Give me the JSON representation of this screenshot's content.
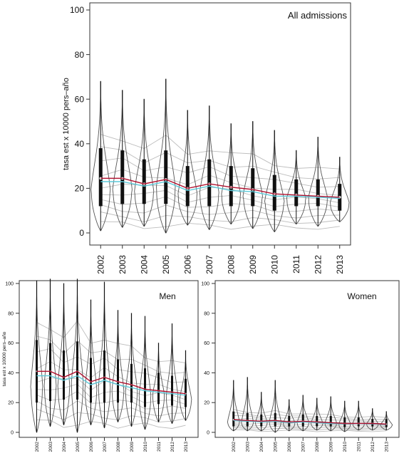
{
  "chart_data": [
    {
      "type": "violin",
      "title": "All admissions",
      "ylabel": "tasa est x 10000 pers–año",
      "ylim": [
        0,
        100
      ],
      "yticks": [
        0,
        20,
        40,
        60,
        80,
        100
      ],
      "categories": [
        "2002",
        "2003",
        "2004",
        "2005",
        "2006",
        "2007",
        "2008",
        "2009",
        "2010",
        "2011",
        "2012",
        "2013"
      ],
      "max": [
        68,
        64,
        60,
        69,
        55,
        57,
        49,
        50,
        46,
        37,
        43,
        34
      ],
      "min": [
        1,
        2.5,
        3,
        0,
        3.5,
        1.5,
        4,
        2,
        0.5,
        4,
        3,
        5
      ],
      "q1": [
        12,
        13,
        13,
        13,
        12,
        12,
        12,
        12,
        10,
        12,
        12,
        10
      ],
      "q3": [
        38,
        37,
        33,
        37,
        30,
        33,
        30,
        29,
        26,
        24,
        24,
        22
      ],
      "median_red": [
        24.5,
        24.5,
        22,
        24,
        20,
        22,
        20.5,
        19.5,
        17.5,
        17,
        16.5,
        16
      ],
      "mean_blue": [
        23,
        23,
        21,
        23,
        19,
        21,
        19,
        18.5,
        16.5,
        16.5,
        16,
        15.5
      ]
    },
    {
      "type": "violin",
      "title": "Men",
      "ylabel": "tasa est x 10000 pers–año",
      "ylim": [
        0,
        100
      ],
      "yticks": [
        0,
        20,
        40,
        60,
        80,
        100
      ],
      "categories": [
        "2002",
        "2003",
        "2004",
        "2005",
        "2006",
        "2007",
        "2008",
        "2009",
        "2010",
        "2011",
        "2012",
        "2013"
      ],
      "max": [
        102,
        103,
        100,
        103,
        89,
        101,
        82,
        80,
        78,
        60,
        73,
        55
      ],
      "min": [
        0,
        4,
        5,
        0,
        5,
        3,
        7,
        4,
        2,
        7,
        6,
        8
      ],
      "q1": [
        20,
        21,
        22,
        22,
        20,
        20,
        20,
        20,
        17,
        19,
        18,
        17
      ],
      "q3": [
        62,
        60,
        55,
        61,
        50,
        55,
        49,
        46,
        43,
        40,
        38,
        36
      ],
      "median_red": [
        41,
        41,
        37,
        41,
        34,
        37,
        34,
        32,
        29,
        28,
        27,
        26
      ],
      "mean_blue": [
        38,
        38,
        35,
        38,
        32,
        35,
        32,
        30,
        28,
        27,
        26,
        25
      ]
    },
    {
      "type": "violin",
      "title": "Women",
      "ylim": [
        0,
        100
      ],
      "yticks": [
        0,
        20,
        40,
        60,
        80,
        100
      ],
      "categories": [
        "2002",
        "2003",
        "2004",
        "2005",
        "2006",
        "2007",
        "2008",
        "2009",
        "2010",
        "2011",
        "2012",
        "2013"
      ],
      "max": [
        35,
        37,
        27,
        35,
        22,
        25,
        23,
        24,
        21,
        21,
        16,
        14
      ],
      "min": [
        1,
        1,
        1,
        0,
        1,
        1,
        1.5,
        1,
        0.5,
        1.5,
        1.5,
        1.5
      ],
      "q1": [
        4,
        4,
        4,
        4,
        4,
        4,
        4,
        4,
        3.5,
        4,
        4,
        3.5
      ],
      "q3": [
        14,
        13,
        12,
        13,
        11,
        12,
        11,
        11,
        10,
        10,
        9,
        9
      ],
      "median_red": [
        8.5,
        8,
        7.5,
        8,
        7,
        7.5,
        7,
        6.5,
        6,
        6,
        6,
        5.5
      ],
      "mean_blue": [
        8,
        7.5,
        7,
        7.5,
        6.5,
        7,
        6.5,
        6,
        5.8,
        5.8,
        5.7,
        5.3
      ]
    }
  ],
  "colors": {
    "median_line": "#b0102e",
    "mean_line": "#5cc8d8",
    "violin_stroke": "#555555",
    "background_lines": "#bdbdbd",
    "box": "#111111"
  }
}
